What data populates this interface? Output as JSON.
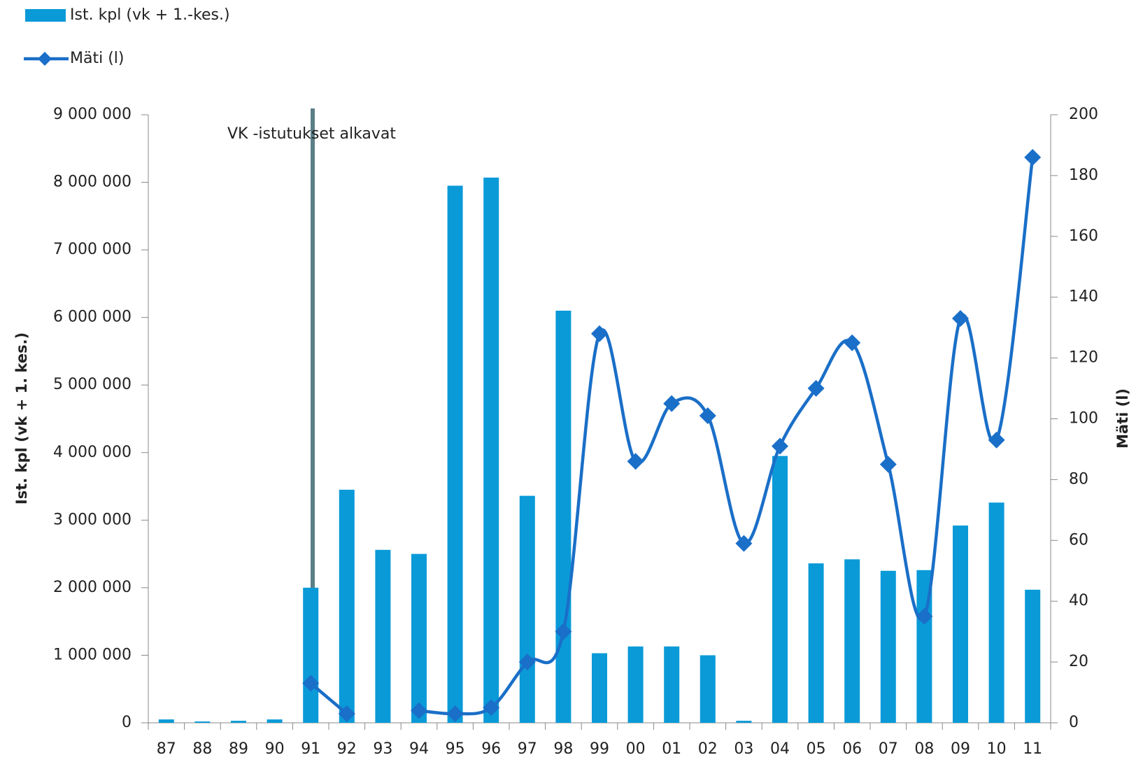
{
  "chart_data": {
    "type": "bar_line",
    "annotation": "VK -istutukset alkavat",
    "y_label": "Ist. kpl (vk + 1. kes.)",
    "y2_label": "Mäti (l)",
    "categories": [
      "87",
      "88",
      "89",
      "90",
      "91",
      "92",
      "93",
      "94",
      "95",
      "96",
      "97",
      "98",
      "99",
      "00",
      "01",
      "02",
      "03",
      "04",
      "05",
      "06",
      "07",
      "08",
      "09",
      "10",
      "11"
    ],
    "series": [
      {
        "name": "Ist. kpl (vk + 1.-kes.)",
        "color": "#0a9ad8",
        "type": "bar",
        "values": [
          50000,
          20000,
          30000,
          50000,
          2000000,
          3450000,
          2560000,
          2500000,
          7950000,
          8070000,
          3360000,
          6100000,
          1030000,
          1130000,
          1130000,
          1000000,
          30000,
          3950000,
          2360000,
          2420000,
          2250000,
          2260000,
          2920000,
          3260000,
          1970000
        ]
      },
      {
        "name": "Mäti (l)",
        "color": "#1a6fc8",
        "type": "line",
        "axis": "y2",
        "values": [
          null,
          null,
          null,
          null,
          13,
          3,
          null,
          4,
          3,
          5,
          20,
          30,
          128,
          86,
          105,
          101,
          59,
          91,
          110,
          125,
          85,
          35,
          133,
          93,
          186
        ]
      }
    ],
    "ylim": [
      0,
      9000000
    ],
    "yticks": [
      0,
      {
        "value": 1000000,
        "label": "1 000 000"
      },
      {
        "value": 2000000,
        "label": "2 000 000"
      },
      {
        "value": 3000000,
        "label": "3 000 000"
      },
      {
        "value": 4000000,
        "label": "4 000 000"
      },
      {
        "value": 5000000,
        "label": "5 000 000"
      },
      {
        "value": 6000000,
        "label": "6 000 000"
      },
      {
        "value": 7000000,
        "label": "7 000 000"
      },
      {
        "value": 8000000,
        "label": "8 000 000"
      },
      {
        "value": 9000000,
        "label": "9 000 000"
      }
    ],
    "y2lim": [
      0,
      200
    ],
    "y2ticks": [
      0,
      20,
      40,
      60,
      80,
      100,
      120,
      140,
      160,
      180,
      200
    ],
    "legend": "top-left"
  }
}
